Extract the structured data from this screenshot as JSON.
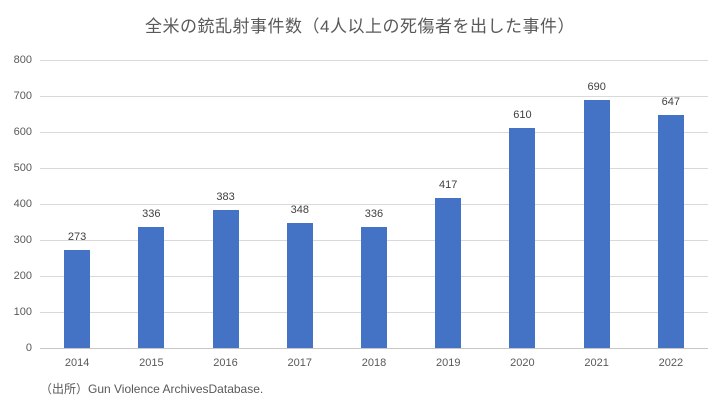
{
  "chart_data": {
    "type": "bar",
    "title": "全米の銃乱射事件数（4人以上の死傷者を出した事件）",
    "categories": [
      "2014",
      "2015",
      "2016",
      "2017",
      "2018",
      "2019",
      "2020",
      "2021",
      "2022"
    ],
    "values": [
      273,
      336,
      383,
      348,
      336,
      417,
      610,
      690,
      647
    ],
    "xlabel": "",
    "ylabel": "",
    "ylim": [
      0,
      800
    ],
    "ytick_step": 100,
    "ytick_labels": [
      "0",
      "100",
      "200",
      "300",
      "400",
      "500",
      "600",
      "700",
      "800"
    ],
    "grid": true,
    "legend_position": "none",
    "data_labels": true,
    "colors": {
      "bar": "#4472C4",
      "gridline": "#d9d9d9",
      "axis_text": "#595959",
      "data_label_text": "#3f3f3f",
      "title_text": "#595959"
    }
  },
  "source_note": "（出所）Gun Violence ArchivesDatabase."
}
